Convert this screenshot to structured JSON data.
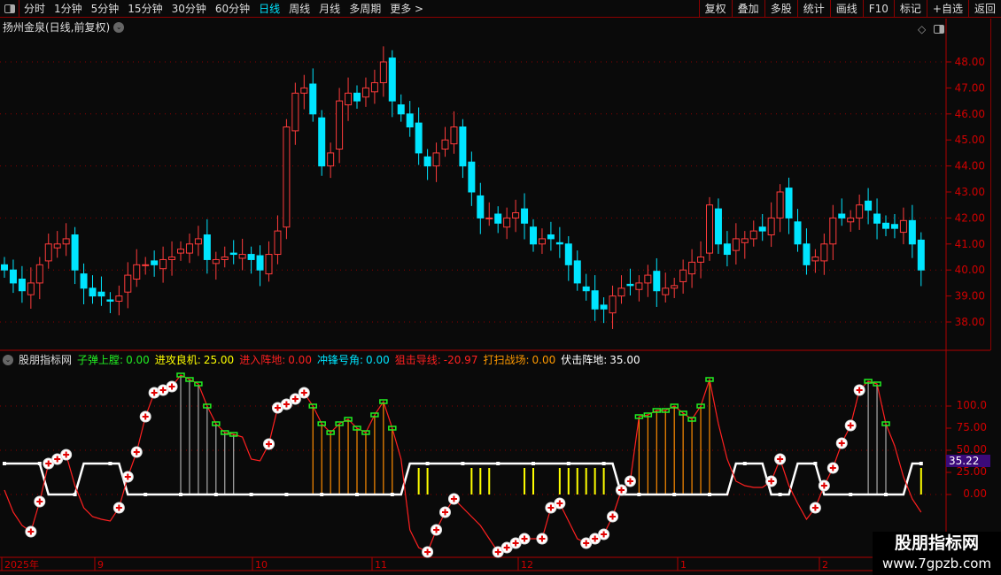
{
  "toolbar": {
    "periods": [
      "分时",
      "1分钟",
      "5分钟",
      "15分钟",
      "30分钟",
      "60分钟",
      "日线",
      "周线",
      "月线",
      "多周期",
      "更多 >"
    ],
    "active_period": "日线",
    "actions": [
      "复权",
      "叠加",
      "多股",
      "统计",
      "画线",
      "F10",
      "标记",
      "+自选",
      "返回"
    ]
  },
  "chart": {
    "title": "扬州金泉(日线,前复权)",
    "price_ticks": [
      "48.00",
      "47.00",
      "46.00",
      "45.00",
      "44.00",
      "43.00",
      "42.00",
      "41.00",
      "40.00",
      "39.00",
      "38.00"
    ],
    "up_color": "#ff3b3b",
    "down_color": "#00e5ff",
    "closes": [
      40.0,
      39.5,
      39.2,
      39.5,
      40.2,
      41.0,
      41.0,
      41.2,
      40.0,
      39.3,
      39.0,
      39.0,
      38.8,
      39.0,
      39.8,
      40.2,
      40.2,
      40.2,
      40.4,
      40.5,
      40.8,
      41.0,
      41.2,
      40.4,
      40.4,
      40.5,
      40.6,
      40.6,
      40.4,
      40.0,
      40.6,
      41.5,
      45.5,
      46.8,
      47.0,
      46.0,
      44.0,
      44.5,
      46.5,
      46.8,
      46.5,
      47.0,
      47.2,
      48.0,
      46.5,
      46.0,
      45.5,
      44.5,
      44.0,
      44.5,
      45.0,
      45.5,
      44.0,
      43.0,
      42.0,
      42.0,
      41.8,
      42.0,
      42.2,
      41.8,
      41.0,
      41.2,
      41.2,
      41.0,
      40.2,
      39.5,
      39.2,
      38.5,
      38.5,
      39.0,
      39.3,
      39.4,
      39.5,
      39.8,
      39.2,
      39.3,
      39.4,
      40.0,
      40.3,
      40.5,
      42.5,
      41.0,
      40.6,
      41.2,
      41.2,
      41.5,
      41.5,
      42.0,
      43.0,
      42.0,
      41.0,
      40.2,
      40.5,
      41.0,
      42.0,
      42.0,
      42.0,
      42.5,
      42.3,
      41.8,
      41.6,
      41.6,
      41.9,
      41.0,
      40.0
    ]
  },
  "indicator": {
    "name": "股朋指标网",
    "items": [
      {
        "label": "子弹上膛:",
        "value": "0.00",
        "color": "#22ee22"
      },
      {
        "label": "进攻良机:",
        "value": "25.00",
        "color": "#ffff00"
      },
      {
        "label": "进入阵地:",
        "value": "0.00",
        "color": "#ff2020"
      },
      {
        "label": "冲锋号角:",
        "value": "0.00",
        "color": "#00e5ff"
      },
      {
        "label": "狙击导线:",
        "value": "-20.97",
        "color": "#ff2020"
      },
      {
        "label": "打扫战场:",
        "value": "0.00",
        "color": "#ff9900"
      },
      {
        "label": "伏击阵地:",
        "value": "35.00",
        "color": "#ffffff"
      }
    ],
    "ticks": [
      "100.0",
      "75.00",
      "50.00",
      "25.00",
      "0.00"
    ],
    "current_value": "35.22",
    "sniper_line": [
      5,
      -20,
      -35,
      -42,
      -8,
      35,
      40,
      45,
      10,
      -15,
      -25,
      -28,
      -30,
      -15,
      20,
      48,
      88,
      115,
      118,
      122,
      135,
      130,
      125,
      100,
      80,
      70,
      68,
      65,
      40,
      38,
      57,
      98,
      102,
      108,
      115,
      100,
      80,
      70,
      80,
      85,
      75,
      70,
      90,
      105,
      75,
      40,
      -40,
      -60,
      -65,
      -40,
      -20,
      -5,
      -15,
      -25,
      -35,
      -50,
      -65,
      -60,
      -55,
      -50,
      -50,
      -50,
      -15,
      -10,
      -30,
      -50,
      -55,
      -50,
      -45,
      -25,
      5,
      15,
      88,
      90,
      95,
      95,
      100,
      92,
      85,
      100,
      130,
      80,
      40,
      15,
      10,
      8,
      8,
      15,
      40,
      10,
      -10,
      -28,
      -15,
      10,
      30,
      58,
      78,
      118,
      128,
      125,
      80,
      55,
      20,
      -5,
      -20
    ],
    "ambush_line": [
      35,
      35,
      35,
      35,
      35,
      0,
      0,
      0,
      0,
      35,
      35,
      35,
      35,
      35,
      0,
      0,
      0,
      0,
      0,
      0,
      0,
      0,
      0,
      0,
      0,
      0,
      0,
      0,
      0,
      0,
      0,
      0,
      0,
      0,
      0,
      0,
      0,
      0,
      0,
      0,
      0,
      0,
      0,
      0,
      0,
      0,
      35,
      35,
      35,
      35,
      35,
      35,
      35,
      35,
      35,
      35,
      35,
      35,
      35,
      35,
      35,
      35,
      35,
      35,
      35,
      35,
      35,
      35,
      35,
      35,
      0,
      0,
      0,
      0,
      0,
      0,
      0,
      0,
      0,
      0,
      0,
      0,
      0,
      35,
      35,
      35,
      35,
      0,
      0,
      0,
      35,
      35,
      35,
      0,
      0,
      0,
      0,
      0,
      0,
      0,
      0,
      0,
      0,
      35,
      35
    ],
    "bars": "....................ggggggg........oooooooooo..yy....yyy...yy..yyyyyy...ooooooooo.................ggg...y"
  },
  "dates": [
    "2025年",
    "9",
    "10",
    "11",
    "12",
    "1",
    "2"
  ],
  "watermark": {
    "name": "股朋指标网",
    "url": "www.7gpzb.com"
  }
}
